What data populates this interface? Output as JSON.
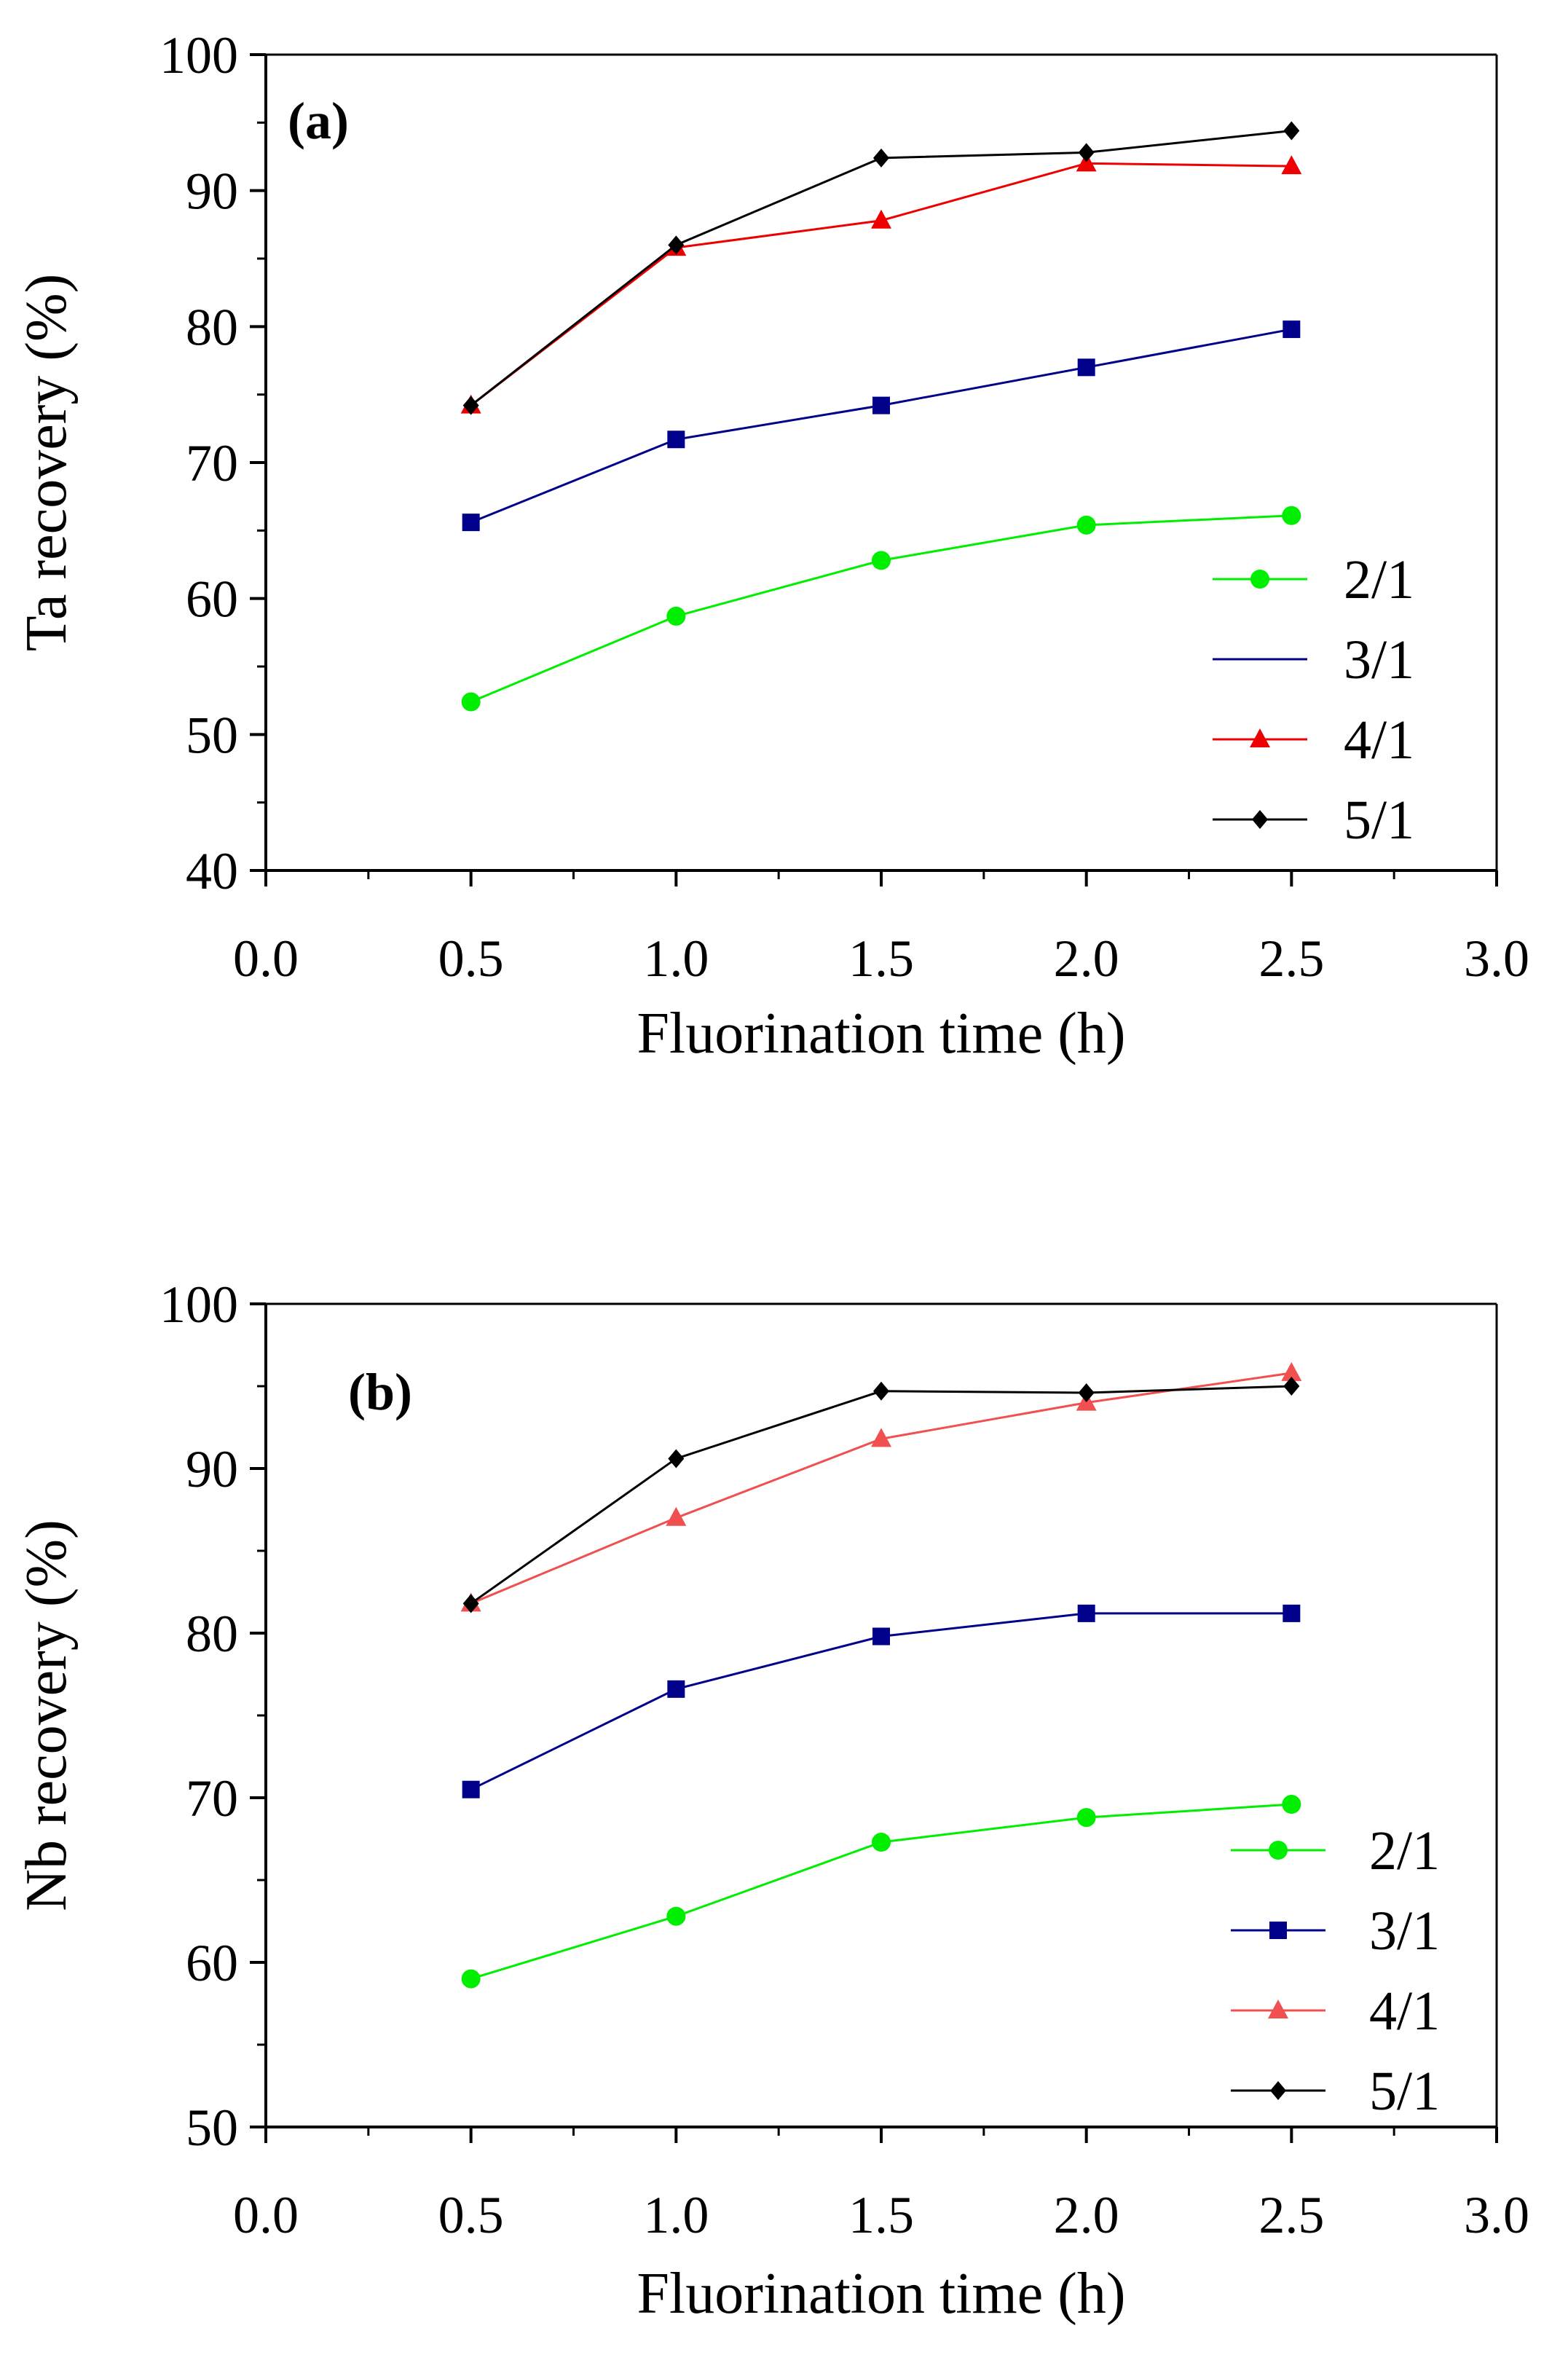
{
  "chart_data": [
    {
      "type": "line",
      "panel_label": "(a)",
      "xlabel": "Fluorination time (h)",
      "ylabel": "Ta recovery (%)",
      "xlim": [
        0.0,
        3.0
      ],
      "ylim": [
        40,
        100
      ],
      "xticks": [
        "0.0",
        "0.5",
        "1.0",
        "1.5",
        "2.0",
        "2.5",
        "3.0"
      ],
      "yticks": [
        "40",
        "50",
        "60",
        "70",
        "80",
        "90",
        "100"
      ],
      "legend_position": "bottom-right",
      "x": [
        0.5,
        1.0,
        1.5,
        2.0,
        2.5
      ],
      "series": [
        {
          "name": "2/1",
          "color": "#00ee00",
          "marker": "circle",
          "values": [
            52.4,
            58.7,
            62.8,
            65.4,
            66.1
          ]
        },
        {
          "name": "3/1",
          "color": "#00008b",
          "marker": "square",
          "values": [
            65.6,
            71.7,
            74.2,
            77.0,
            79.8
          ]
        },
        {
          "name": "4/1",
          "color": "#ee0000",
          "marker": "triangle",
          "values": [
            74.2,
            85.8,
            87.8,
            92.0,
            91.8
          ]
        },
        {
          "name": "5/1",
          "color": "#000000",
          "marker": "diamond",
          "values": [
            74.2,
            86.0,
            92.4,
            92.8,
            94.4
          ]
        }
      ]
    },
    {
      "type": "line",
      "panel_label": "(b)",
      "xlabel": "Fluorination time (h)",
      "ylabel": "Nb recovery (%)",
      "xlim": [
        0.0,
        3.0
      ],
      "ylim": [
        50,
        100
      ],
      "xticks": [
        "0.0",
        "0.5",
        "1.0",
        "1.5",
        "2.0",
        "2.5",
        "3.0"
      ],
      "yticks": [
        "50",
        "60",
        "70",
        "80",
        "90",
        "100"
      ],
      "legend_position": "bottom-right",
      "x": [
        0.5,
        1.0,
        1.5,
        2.0,
        2.5
      ],
      "series": [
        {
          "name": "2/1",
          "color": "#00ee00",
          "marker": "circle",
          "values": [
            59.0,
            62.8,
            67.3,
            68.8,
            69.6
          ]
        },
        {
          "name": "3/1",
          "color": "#00008b",
          "marker": "square",
          "values": [
            70.5,
            76.6,
            79.8,
            81.2,
            81.2
          ]
        },
        {
          "name": "4/1",
          "color": "#f05050",
          "marker": "triangle",
          "values": [
            81.8,
            87.0,
            91.8,
            94.0,
            95.8
          ]
        },
        {
          "name": "5/1",
          "color": "#000000",
          "marker": "diamond",
          "values": [
            81.8,
            90.6,
            94.7,
            94.6,
            95.0
          ]
        }
      ]
    }
  ]
}
